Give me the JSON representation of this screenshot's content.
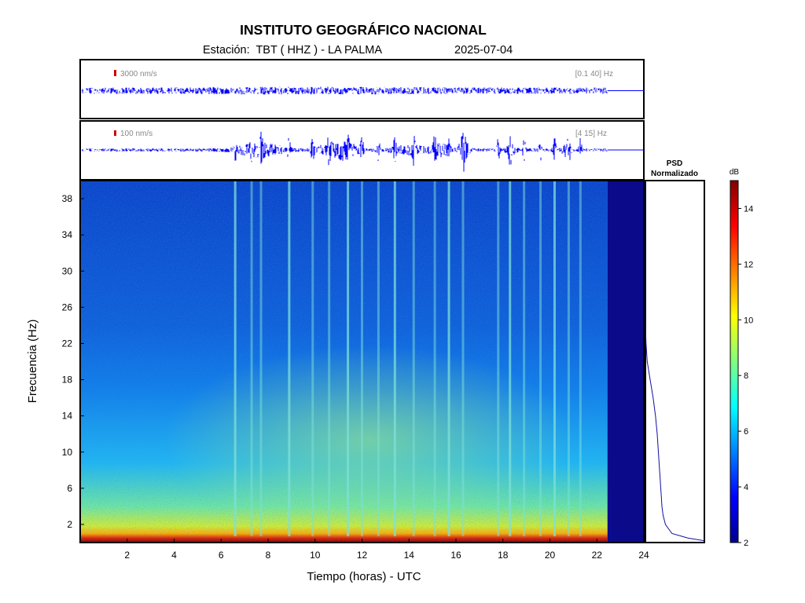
{
  "header": {
    "title": "INSTITUTO GEOGRÁFICO NACIONAL",
    "station_label": "Estación:  TBT ( HHZ ) - LA PALMA",
    "date": "2025-07-04"
  },
  "traces": [
    {
      "amplitude_label": "3000 nm/s",
      "filter_label": "[0.1 40] Hz",
      "color": "#0000ff",
      "scale_color": "#cc0000"
    },
    {
      "amplitude_label": "100 nm/s",
      "filter_label": "[4 15] Hz",
      "color": "#0000ff",
      "scale_color": "#cc0000"
    }
  ],
  "psd_label_line1": "PSD",
  "psd_label_line2": "Normalizado",
  "colorbar": {
    "unit": "dB",
    "min": 2,
    "max": 15,
    "ticks": [
      "2",
      "4",
      "6",
      "8",
      "10",
      "12",
      "14"
    ]
  },
  "chart_data": {
    "type": "heatmap",
    "title": "INSTITUTO GEOGRÁFICO NACIONAL",
    "xlabel": "Tiempo (horas) - UTC",
    "ylabel": "Frecuencia  (Hz)",
    "xlim": [
      0,
      24
    ],
    "ylim": [
      0,
      40
    ],
    "x_ticks": [
      "2",
      "4",
      "6",
      "8",
      "10",
      "12",
      "14",
      "16",
      "18",
      "20",
      "22",
      "24"
    ],
    "y_ticks": [
      "2",
      "6",
      "10",
      "14",
      "18",
      "22",
      "26",
      "30",
      "34",
      "38"
    ],
    "data_end_hour": 22.45,
    "transient_hours": [
      6.6,
      7.3,
      7.7,
      8.9,
      9.9,
      10.6,
      11.4,
      12.0,
      12.7,
      13.4,
      14.2,
      15.1,
      15.7,
      16.3,
      17.8,
      18.3,
      18.9,
      19.6,
      20.2,
      20.8,
      21.3
    ],
    "psd_normalized": {
      "freq_hz": [
        0.2,
        0.5,
        1,
        2,
        3,
        4,
        5,
        6,
        7,
        8,
        10,
        12,
        14,
        16,
        18,
        20,
        22,
        24,
        26,
        28,
        30,
        34,
        38,
        40
      ],
      "value": [
        1.0,
        0.72,
        0.45,
        0.34,
        0.3,
        0.28,
        0.27,
        0.26,
        0.25,
        0.24,
        0.22,
        0.2,
        0.17,
        0.13,
        0.08,
        0.03,
        0.01,
        0.0,
        0.0,
        0.0,
        0.0,
        0.0,
        0.0,
        0.0
      ]
    }
  }
}
